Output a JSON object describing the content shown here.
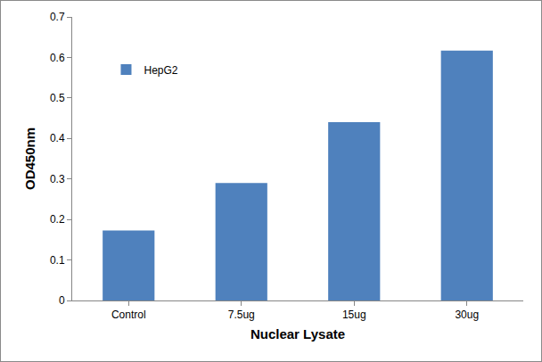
{
  "chart_data": {
    "type": "bar",
    "x_label": "Nuclear Lysate",
    "y_label": "OD450nm",
    "categories": [
      "Control",
      "7.5ug",
      "15ug",
      "30ug"
    ],
    "series": [
      {
        "name": "HepG2",
        "color": "#4f81bd",
        "values": [
          0.173,
          0.29,
          0.44,
          0.617
        ]
      }
    ],
    "ylim": [
      0,
      0.7
    ],
    "yticks": [
      0,
      0.1,
      0.2,
      0.3,
      0.4,
      0.5,
      0.6,
      0.7
    ],
    "grid": false,
    "legend": "top-left"
  }
}
